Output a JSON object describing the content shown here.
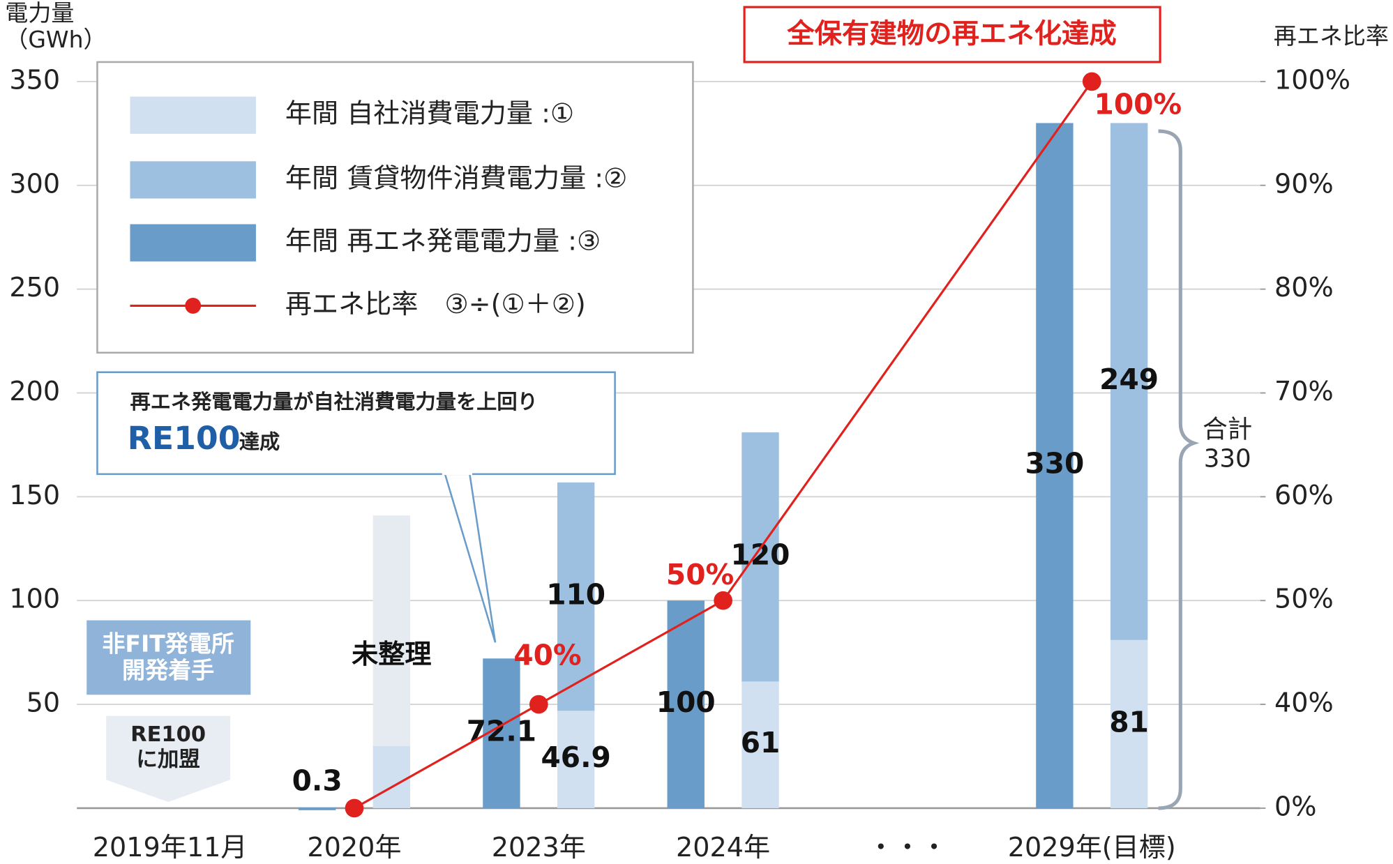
{
  "chart_data": {
    "type": "bar_line",
    "ylabel": "電力量",
    "yunit": "（GWh）",
    "y2label": "再エネ比率",
    "categories": [
      "2019年11月",
      "2020年",
      "2023年",
      "2024年",
      "2029年(目標)"
    ],
    "gap_label": "・・・",
    "ylim": [
      0,
      350
    ],
    "yticks": [
      50,
      100,
      150,
      200,
      250,
      300,
      350
    ],
    "y2lim": [
      0,
      100
    ],
    "y2ticks": [
      {
        "value": 0,
        "label": "0%"
      },
      {
        "value": 40,
        "label": "40%"
      },
      {
        "value": 50,
        "label": "50%"
      },
      {
        "value": 60,
        "label": "60%"
      },
      {
        "value": 70,
        "label": "70%"
      },
      {
        "value": 80,
        "label": "80%"
      },
      {
        "value": 90,
        "label": "90%"
      },
      {
        "value": 100,
        "label": "100%"
      }
    ],
    "grid": true,
    "legend": "upper left",
    "series": [
      {
        "name": "年間 自社消費電力量 :①",
        "color": "#d0e0f0",
        "values": [
          null,
          30,
          46.9,
          61,
          81
        ],
        "value_labels": [
          null,
          null,
          "46.9",
          "61",
          "81"
        ]
      },
      {
        "name": "年間 賃貸物件消費電力量 :②",
        "color": "#9dbfe0",
        "values": [
          null,
          null,
          110,
          120,
          249
        ]
      },
      {
        "name": "年間 再エネ発電電力量 :③",
        "color": "#6a9cca",
        "values": [
          null,
          0.3,
          72.1,
          100,
          330
        ]
      },
      {
        "name": "再エネ比率　③÷(①＋②)",
        "color": "#e0211d",
        "axis": "y2",
        "values": [
          null,
          0,
          40,
          50,
          100
        ],
        "value_labels": [
          null,
          null,
          "40%",
          "50%",
          "100%"
        ]
      },
      {
        "name": "未整理",
        "color": "#e6ebf1",
        "values": [
          null,
          111,
          null,
          null,
          null
        ]
      }
    ],
    "annotations": {
      "goal": "全保有建物の再エネ化達成",
      "callout_text": "再エネ発電電力量が自社消費電力量を上回り",
      "callout_re100": "RE100",
      "callout_achieved": "達成",
      "fit_box": [
        "非FIT発電所",
        "開発着手"
      ],
      "join_box": [
        "RE100",
        "に加盟"
      ],
      "total": {
        "label": "合計",
        "value": 330
      }
    }
  }
}
